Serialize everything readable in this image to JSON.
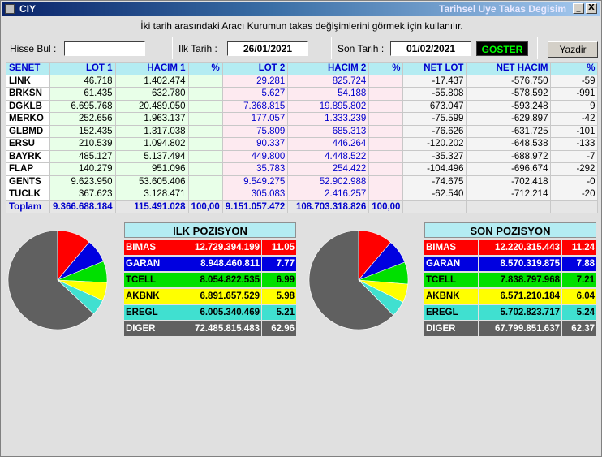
{
  "window": {
    "app_label": "CIY",
    "title": "Tarihsel Uye Takas Degisim",
    "minimize_label": "_",
    "close_label": "X"
  },
  "info_text": "İki tarih arasındaki  Aracı Kurumun takas değişimlerini görmek için kullanılır.",
  "controls": {
    "hisse_label": "Hisse Bul :",
    "hisse_value": "",
    "ilk_tarih_label": "Ilk Tarih :",
    "ilk_tarih_value": "26/01/2021",
    "son_tarih_label": "Son Tarih :",
    "son_tarih_value": "01/02/2021",
    "goster_label": "GOSTER",
    "yazdir_label": "Yazdir"
  },
  "table": {
    "headers": [
      "SENET",
      "LOT 1",
      "HACIM 1",
      "%",
      "LOT 2",
      "HACIM 2",
      "%",
      "NET LOT",
      "NET HACIM",
      "%"
    ],
    "rows": [
      {
        "senet": "LINK",
        "lot1": "46.718",
        "hacim1": "1.402.474",
        "pct1": "",
        "lot2": "29.281",
        "hacim2": "825.724",
        "pct2": "",
        "net_lot": "-17.437",
        "net_hacim": "-576.750",
        "net_pct": "-59"
      },
      {
        "senet": "BRKSN",
        "lot1": "61.435",
        "hacim1": "632.780",
        "pct1": "",
        "lot2": "5.627",
        "hacim2": "54.188",
        "pct2": "",
        "net_lot": "-55.808",
        "net_hacim": "-578.592",
        "net_pct": "-991"
      },
      {
        "senet": "DGKLB",
        "lot1": "6.695.768",
        "hacim1": "20.489.050",
        "pct1": "",
        "lot2": "7.368.815",
        "hacim2": "19.895.802",
        "pct2": "",
        "net_lot": "673.047",
        "net_hacim": "-593.248",
        "net_pct": "9"
      },
      {
        "senet": "MERKO",
        "lot1": "252.656",
        "hacim1": "1.963.137",
        "pct1": "",
        "lot2": "177.057",
        "hacim2": "1.333.239",
        "pct2": "",
        "net_lot": "-75.599",
        "net_hacim": "-629.897",
        "net_pct": "-42"
      },
      {
        "senet": "GLBMD",
        "lot1": "152.435",
        "hacim1": "1.317.038",
        "pct1": "",
        "lot2": "75.809",
        "hacim2": "685.313",
        "pct2": "",
        "net_lot": "-76.626",
        "net_hacim": "-631.725",
        "net_pct": "-101"
      },
      {
        "senet": "ERSU",
        "lot1": "210.539",
        "hacim1": "1.094.802",
        "pct1": "",
        "lot2": "90.337",
        "hacim2": "446.264",
        "pct2": "",
        "net_lot": "-120.202",
        "net_hacim": "-648.538",
        "net_pct": "-133"
      },
      {
        "senet": "BAYRK",
        "lot1": "485.127",
        "hacim1": "5.137.494",
        "pct1": "",
        "lot2": "449.800",
        "hacim2": "4.448.522",
        "pct2": "",
        "net_lot": "-35.327",
        "net_hacim": "-688.972",
        "net_pct": "-7"
      },
      {
        "senet": "FLAP",
        "lot1": "140.279",
        "hacim1": "951.096",
        "pct1": "",
        "lot2": "35.783",
        "hacim2": "254.422",
        "pct2": "",
        "net_lot": "-104.496",
        "net_hacim": "-696.674",
        "net_pct": "-292"
      },
      {
        "senet": "GENTS",
        "lot1": "9.623.950",
        "hacim1": "53.605.406",
        "pct1": "",
        "lot2": "9.549.275",
        "hacim2": "52.902.988",
        "pct2": "",
        "net_lot": "-74.675",
        "net_hacim": "-702.418",
        "net_pct": "-0"
      },
      {
        "senet": "TUCLK",
        "lot1": "367.623",
        "hacim1": "3.128.471",
        "pct1": "",
        "lot2": "305.083",
        "hacim2": "2.416.257",
        "pct2": "",
        "net_lot": "-62.540",
        "net_hacim": "-712.214",
        "net_pct": "-20"
      }
    ],
    "total": {
      "senet": "Toplam",
      "lot1": "9.366.688.184",
      "hacim1": "115.491.028",
      "pct1": "100,00",
      "lot2": "9.151.057.472",
      "hacim2": "108.703.318.826",
      "pct2": "100,00",
      "net_lot": "",
      "net_hacim": "",
      "net_pct": ""
    }
  },
  "colors": {
    "BIMAS": "#ff0000",
    "GARAN": "#0000e0",
    "TCELL": "#00e000",
    "AKBNK": "#ffff00",
    "EREGL": "#40e0d0",
    "DIGER": "#606060"
  },
  "ilk_pozisyon": {
    "title": "ILK POZISYON",
    "rows": [
      {
        "symbol": "BIMAS",
        "value": "12.729.394.199",
        "pct": "11.05"
      },
      {
        "symbol": "GARAN",
        "value": "8.948.460.811",
        "pct": "7.77"
      },
      {
        "symbol": "TCELL",
        "value": "8.054.822.535",
        "pct": "6.99"
      },
      {
        "symbol": "AKBNK",
        "value": "6.891.657.529",
        "pct": "5.98"
      },
      {
        "symbol": "EREGL",
        "value": "6.005.340.469",
        "pct": "5.21"
      },
      {
        "symbol": "DIGER",
        "value": "72.485.815.483",
        "pct": "62.96"
      }
    ]
  },
  "son_pozisyon": {
    "title": "SON POZISYON",
    "rows": [
      {
        "symbol": "BIMAS",
        "value": "12.220.315.443",
        "pct": "11.24"
      },
      {
        "symbol": "GARAN",
        "value": "8.570.319.875",
        "pct": "7.88"
      },
      {
        "symbol": "TCELL",
        "value": "7.838.797.968",
        "pct": "7.21"
      },
      {
        "symbol": "AKBNK",
        "value": "6.571.210.184",
        "pct": "6.04"
      },
      {
        "symbol": "EREGL",
        "value": "5.702.823.717",
        "pct": "5.24"
      },
      {
        "symbol": "DIGER",
        "value": "67.799.851.637",
        "pct": "62.37"
      }
    ]
  }
}
